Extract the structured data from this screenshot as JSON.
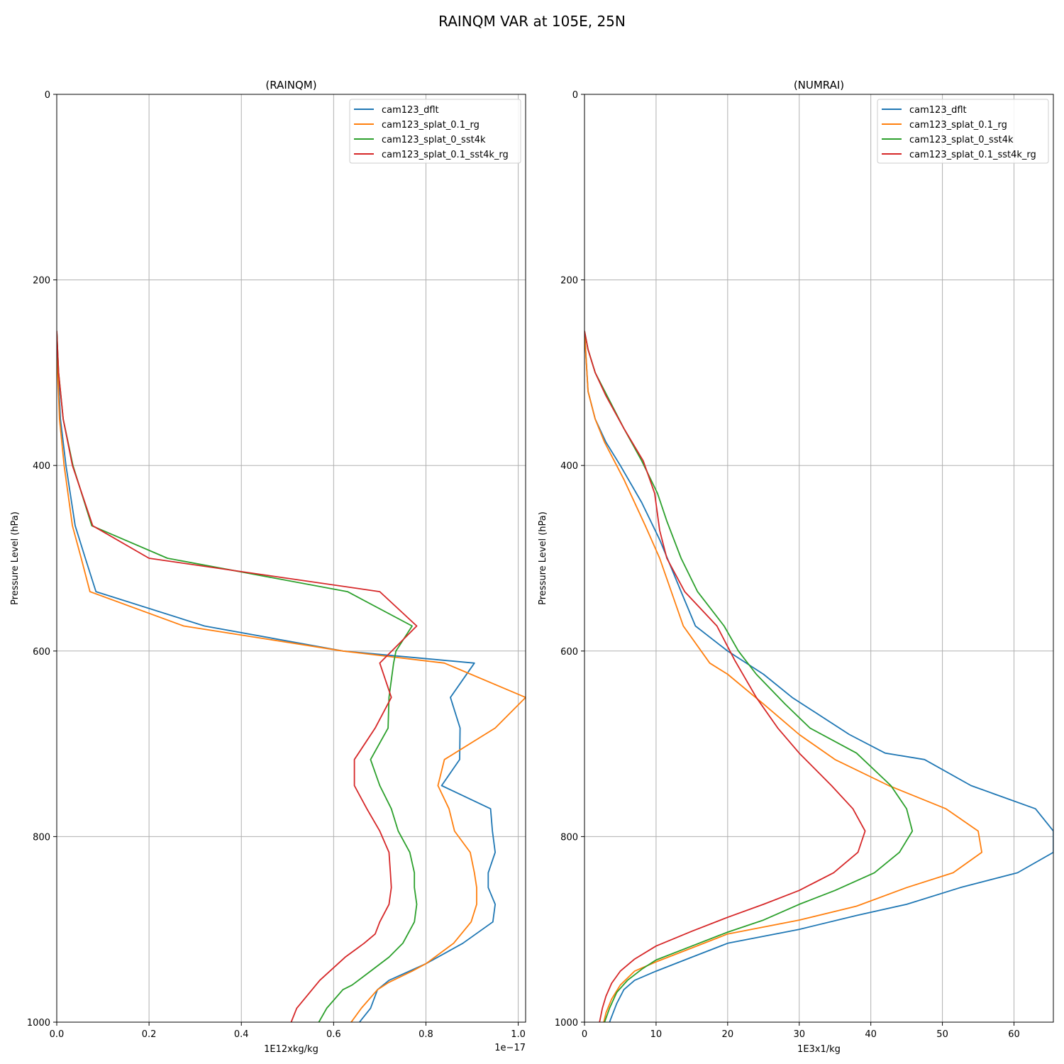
{
  "figure": {
    "suptitle": "RAINQM VAR at 105E, 25N"
  },
  "colors": {
    "cam123_dflt": "#1f77b4",
    "cam123_splat_0.1_rg": "#ff7f0e",
    "cam123_splat_0_sst4k": "#2ca02c",
    "cam123_splat_0.1_sst4k_rg": "#d62728",
    "grid": "#b0b0b0"
  },
  "chart_data": [
    {
      "type": "line",
      "title": "(RAINQM)",
      "xlabel": "1E12xkg/kg",
      "ylabel": "Pressure Level (hPa)",
      "x_offset_text": "1e−17",
      "xlim": [
        0,
        1.016
      ],
      "ylim": [
        1000,
        0
      ],
      "y_inverted": true,
      "grid": true,
      "legend_position": "top-right",
      "xticks": [
        0.0,
        0.2,
        0.4,
        0.6,
        0.8,
        1.0
      ],
      "xtick_labels": [
        "0.0",
        "0.2",
        "0.4",
        "0.6",
        "0.8",
        "1.0"
      ],
      "yticks": [
        0,
        200,
        400,
        600,
        800,
        1000
      ],
      "ytick_labels": [
        "0",
        "200",
        "400",
        "600",
        "800",
        "1000"
      ],
      "series": [
        {
          "name": "cam123_dflt",
          "points": [
            [
              0,
              255
            ],
            [
              0.003,
              300
            ],
            [
              0.008,
              350
            ],
            [
              0.02,
              400
            ],
            [
              0.04,
              465
            ],
            [
              0.062,
              500
            ],
            [
              0.085,
              536
            ],
            [
              0.32,
              573
            ],
            [
              0.62,
              600
            ],
            [
              0.905,
              613
            ],
            [
              0.853,
              650
            ],
            [
              0.874,
              683
            ],
            [
              0.873,
              717
            ],
            [
              0.834,
              745
            ],
            [
              0.94,
              770
            ],
            [
              0.944,
              794
            ],
            [
              0.95,
              817
            ],
            [
              0.935,
              839
            ],
            [
              0.935,
              855
            ],
            [
              0.95,
              873
            ],
            [
              0.945,
              892
            ],
            [
              0.88,
              915
            ],
            [
              0.8,
              937
            ],
            [
              0.72,
              955
            ],
            [
              0.695,
              965
            ],
            [
              0.68,
              985
            ],
            [
              0.656,
              1000
            ]
          ]
        },
        {
          "name": "cam123_splat_0.1_rg",
          "points": [
            [
              0,
              255
            ],
            [
              0.002,
              300
            ],
            [
              0.006,
              350
            ],
            [
              0.016,
              400
            ],
            [
              0.034,
              465
            ],
            [
              0.053,
              500
            ],
            [
              0.072,
              536
            ],
            [
              0.275,
              573
            ],
            [
              0.62,
              600
            ],
            [
              0.84,
              613
            ],
            [
              1.016,
              650
            ],
            [
              0.95,
              683
            ],
            [
              0.84,
              717
            ],
            [
              0.826,
              745
            ],
            [
              0.85,
              770
            ],
            [
              0.862,
              794
            ],
            [
              0.896,
              817
            ],
            [
              0.905,
              839
            ],
            [
              0.91,
              855
            ],
            [
              0.91,
              873
            ],
            [
              0.898,
              892
            ],
            [
              0.86,
              915
            ],
            [
              0.8,
              937
            ],
            [
              0.77,
              945
            ],
            [
              0.72,
              957
            ],
            [
              0.695,
              965
            ],
            [
              0.66,
              985
            ],
            [
              0.638,
              1000
            ]
          ]
        },
        {
          "name": "cam123_splat_0_sst4k",
          "points": [
            [
              0,
              255
            ],
            [
              0.004,
              300
            ],
            [
              0.014,
              350
            ],
            [
              0.035,
              400
            ],
            [
              0.076,
              465
            ],
            [
              0.24,
              500
            ],
            [
              0.63,
              536
            ],
            [
              0.77,
              573
            ],
            [
              0.735,
              600
            ],
            [
              0.73,
              613
            ],
            [
              0.72,
              650
            ],
            [
              0.718,
              683
            ],
            [
              0.68,
              717
            ],
            [
              0.7,
              745
            ],
            [
              0.725,
              770
            ],
            [
              0.74,
              794
            ],
            [
              0.765,
              817
            ],
            [
              0.775,
              839
            ],
            [
              0.775,
              855
            ],
            [
              0.78,
              873
            ],
            [
              0.775,
              892
            ],
            [
              0.75,
              915
            ],
            [
              0.72,
              930
            ],
            [
              0.68,
              945
            ],
            [
              0.64,
              960
            ],
            [
              0.62,
              965
            ],
            [
              0.585,
              985
            ],
            [
              0.568,
              1000
            ]
          ]
        },
        {
          "name": "cam123_splat_0.1_sst4k_rg",
          "points": [
            [
              0,
              255
            ],
            [
              0.004,
              300
            ],
            [
              0.014,
              350
            ],
            [
              0.034,
              400
            ],
            [
              0.078,
              465
            ],
            [
              0.2,
              500
            ],
            [
              0.7,
              536
            ],
            [
              0.78,
              573
            ],
            [
              0.7,
              613
            ],
            [
              0.725,
              650
            ],
            [
              0.69,
              683
            ],
            [
              0.645,
              717
            ],
            [
              0.645,
              745
            ],
            [
              0.672,
              770
            ],
            [
              0.7,
              794
            ],
            [
              0.72,
              817
            ],
            [
              0.723,
              839
            ],
            [
              0.725,
              855
            ],
            [
              0.72,
              873
            ],
            [
              0.7,
              892
            ],
            [
              0.69,
              905
            ],
            [
              0.666,
              915
            ],
            [
              0.625,
              930
            ],
            [
              0.57,
              955
            ],
            [
              0.52,
              985
            ],
            [
              0.508,
              1000
            ]
          ]
        }
      ]
    },
    {
      "type": "line",
      "title": "(NUMRAI)",
      "xlabel": "1E3x1/kg",
      "ylabel": "Pressure Level (hPa)",
      "xlim": [
        0,
        65.5
      ],
      "ylim": [
        1000,
        0
      ],
      "y_inverted": true,
      "grid": true,
      "legend_position": "top-right",
      "xticks": [
        0,
        10,
        20,
        30,
        40,
        50,
        60
      ],
      "xtick_labels": [
        "0",
        "10",
        "20",
        "30",
        "40",
        "50",
        "60"
      ],
      "yticks": [
        0,
        200,
        400,
        600,
        800,
        1000
      ],
      "ytick_labels": [
        "0",
        "200",
        "400",
        "600",
        "800",
        "1000"
      ],
      "series": [
        {
          "name": "cam123_dflt",
          "points": [
            [
              0,
              255
            ],
            [
              0.5,
              320
            ],
            [
              1.5,
              350
            ],
            [
              3,
              375
            ],
            [
              5,
              400
            ],
            [
              8,
              440
            ],
            [
              10.5,
              480
            ],
            [
              13.5,
              536
            ],
            [
              15.5,
              573
            ],
            [
              20,
              600
            ],
            [
              25,
              625
            ],
            [
              29,
              650
            ],
            [
              32,
              665
            ],
            [
              37,
              690
            ],
            [
              42,
              710
            ],
            [
              47.5,
              717
            ],
            [
              54,
              745
            ],
            [
              63,
              770
            ],
            [
              65.5,
              794
            ],
            [
              65.5,
              817
            ],
            [
              60.5,
              839
            ],
            [
              52.5,
              855
            ],
            [
              45,
              873
            ],
            [
              38,
              885
            ],
            [
              30,
              900
            ],
            [
              20,
              915
            ],
            [
              15,
              930
            ],
            [
              10,
              945
            ],
            [
              7,
              955
            ],
            [
              5.5,
              965
            ],
            [
              4.5,
              980
            ],
            [
              3.5,
              1000
            ]
          ]
        },
        {
          "name": "cam123_splat_0.1_rg",
          "points": [
            [
              0,
              255
            ],
            [
              0.5,
              320
            ],
            [
              1.5,
              350
            ],
            [
              2.8,
              375
            ],
            [
              5.5,
              415
            ],
            [
              8.5,
              465
            ],
            [
              10.5,
              500
            ],
            [
              13.8,
              573
            ],
            [
              17.5,
              613
            ],
            [
              20,
              625
            ],
            [
              25,
              657
            ],
            [
              30,
              690
            ],
            [
              35,
              717
            ],
            [
              42.5,
              745
            ],
            [
              50.5,
              770
            ],
            [
              55,
              794
            ],
            [
              55.5,
              817
            ],
            [
              51.5,
              839
            ],
            [
              45,
              855
            ],
            [
              38,
              875
            ],
            [
              30,
              890
            ],
            [
              20,
              905
            ],
            [
              15,
              920
            ],
            [
              10,
              935
            ],
            [
              7,
              945
            ],
            [
              5,
              960
            ],
            [
              3.8,
              975
            ],
            [
              3,
              990
            ],
            [
              2.7,
              1000
            ]
          ]
        },
        {
          "name": "cam123_splat_0_sst4k",
          "points": [
            [
              0,
              255
            ],
            [
              0.5,
              275
            ],
            [
              1.5,
              300
            ],
            [
              3.5,
              330
            ],
            [
              5.5,
              360
            ],
            [
              8,
              395
            ],
            [
              10.2,
              430
            ],
            [
              11.5,
              460
            ],
            [
              13.5,
              500
            ],
            [
              15.8,
              536
            ],
            [
              19.5,
              573
            ],
            [
              21.5,
              600
            ],
            [
              24,
              625
            ],
            [
              28,
              657
            ],
            [
              31.5,
              683
            ],
            [
              38,
              710
            ],
            [
              42.8,
              745
            ],
            [
              45,
              770
            ],
            [
              45.8,
              794
            ],
            [
              44,
              817
            ],
            [
              40.5,
              839
            ],
            [
              35,
              858
            ],
            [
              30,
              873
            ],
            [
              25,
              890
            ],
            [
              20,
              903
            ],
            [
              15,
              918
            ],
            [
              10,
              933
            ],
            [
              8,
              943
            ],
            [
              6,
              955
            ],
            [
              4.5,
              968
            ],
            [
              3.5,
              985
            ],
            [
              2.8,
              1000
            ]
          ]
        },
        {
          "name": "cam123_splat_0.1_sst4k_rg",
          "points": [
            [
              0,
              255
            ],
            [
              0.5,
              275
            ],
            [
              1.5,
              300
            ],
            [
              3,
              325
            ],
            [
              5.5,
              360
            ],
            [
              8.2,
              395
            ],
            [
              9.8,
              430
            ],
            [
              10.5,
              470
            ],
            [
              11.5,
              500
            ],
            [
              14,
              536
            ],
            [
              18.5,
              573
            ],
            [
              21,
              610
            ],
            [
              24,
              650
            ],
            [
              27,
              683
            ],
            [
              30,
              710
            ],
            [
              34.5,
              745
            ],
            [
              37.5,
              770
            ],
            [
              39.2,
              794
            ],
            [
              38.2,
              817
            ],
            [
              34.8,
              839
            ],
            [
              30,
              858
            ],
            [
              25,
              873
            ],
            [
              20,
              887
            ],
            [
              15,
              902
            ],
            [
              10,
              918
            ],
            [
              7,
              932
            ],
            [
              5,
              945
            ],
            [
              3.8,
              958
            ],
            [
              3,
              972
            ],
            [
              2.5,
              985
            ],
            [
              2.1,
              1000
            ]
          ]
        }
      ]
    }
  ]
}
